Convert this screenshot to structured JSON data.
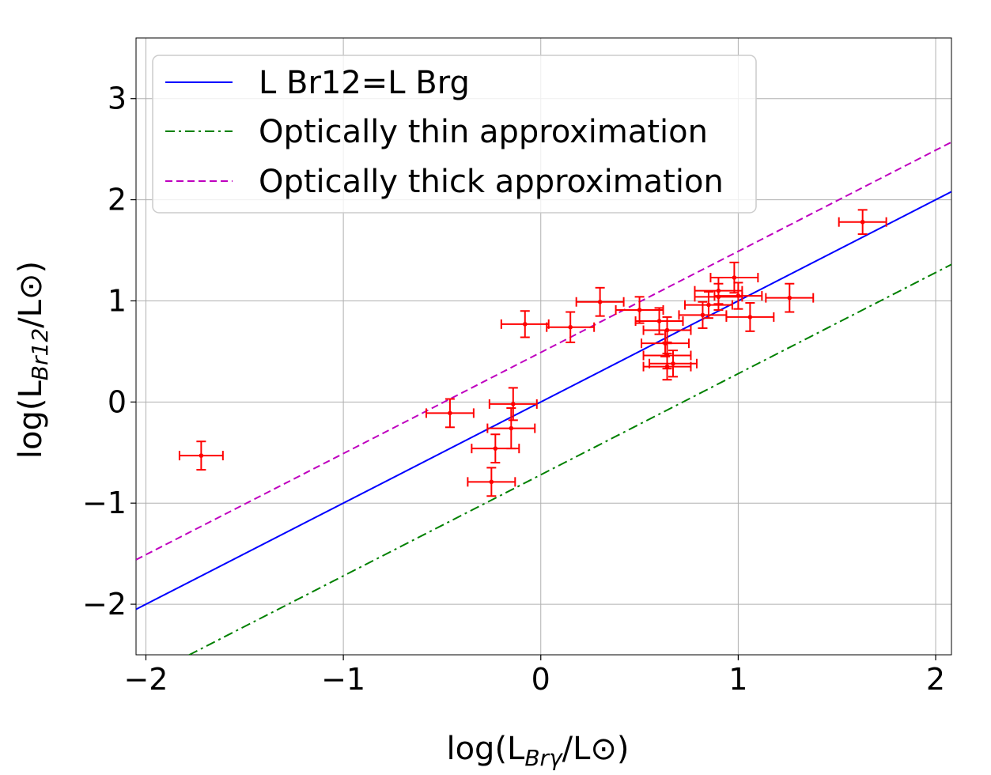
{
  "chart_data": {
    "type": "scatter",
    "title": "",
    "xlabel": "log(L_Brγ/L⊙)",
    "ylabel": "log(L_Br12/L⊙)",
    "xlabel_parts": {
      "pre": "log(L",
      "sub": "Brγ",
      "post": "/L⊙)"
    },
    "ylabel_parts": {
      "pre": "log(L",
      "sub": "Br12",
      "post": "/L⊙)"
    },
    "xlim": [
      -2.05,
      2.08
    ],
    "ylim": [
      -2.5,
      3.6
    ],
    "xticks": [
      -2,
      -1,
      0,
      1,
      2
    ],
    "yticks": [
      -2,
      -1,
      0,
      1,
      2,
      3
    ],
    "xtick_labels": [
      "−2",
      "−1",
      "0",
      "1",
      "2"
    ],
    "ytick_labels": [
      "−2",
      "−1",
      "0",
      "1",
      "2",
      "3"
    ],
    "grid": true,
    "legend_position": "top-left",
    "colors": {
      "equal": "#0000ff",
      "thin": "#008000",
      "thick": "#bf00bf",
      "data": "#ff0000",
      "grid": "#b0b0b0"
    },
    "lines": [
      {
        "name": "L Br12=L Brg",
        "slope": 1.0,
        "intercept": 0.0,
        "style": "solid",
        "color": "#0000ff"
      },
      {
        "name": "Optically thin approximation",
        "slope": 1.0,
        "intercept": -0.72,
        "style": "dashdot",
        "color": "#008000"
      },
      {
        "name": "Optically thick approximation",
        "slope": 1.0,
        "intercept": 0.49,
        "style": "dashed",
        "color": "#bf00bf"
      }
    ],
    "series": [
      {
        "name": "data",
        "points": [
          {
            "x": -1.72,
            "y": -0.53,
            "xerr": 0.11,
            "yerr": 0.14
          },
          {
            "x": -0.46,
            "y": -0.11,
            "xerr": 0.12,
            "yerr": 0.14
          },
          {
            "x": -0.14,
            "y": -0.02,
            "xerr": 0.12,
            "yerr": 0.16
          },
          {
            "x": -0.15,
            "y": -0.26,
            "xerr": 0.12,
            "yerr": 0.2
          },
          {
            "x": -0.23,
            "y": -0.46,
            "xerr": 0.12,
            "yerr": 0.14
          },
          {
            "x": -0.25,
            "y": -0.79,
            "xerr": 0.12,
            "yerr": 0.14
          },
          {
            "x": -0.08,
            "y": 0.77,
            "xerr": 0.12,
            "yerr": 0.13
          },
          {
            "x": 0.15,
            "y": 0.74,
            "xerr": 0.12,
            "yerr": 0.15
          },
          {
            "x": 0.3,
            "y": 0.99,
            "xerr": 0.12,
            "yerr": 0.14
          },
          {
            "x": 0.5,
            "y": 0.91,
            "xerr": 0.12,
            "yerr": 0.13
          },
          {
            "x": 0.6,
            "y": 0.8,
            "xerr": 0.12,
            "yerr": 0.13
          },
          {
            "x": 0.64,
            "y": 0.71,
            "xerr": 0.12,
            "yerr": 0.13
          },
          {
            "x": 0.63,
            "y": 0.58,
            "xerr": 0.12,
            "yerr": 0.13
          },
          {
            "x": 0.64,
            "y": 0.46,
            "xerr": 0.12,
            "yerr": 0.13
          },
          {
            "x": 0.67,
            "y": 0.38,
            "xerr": 0.12,
            "yerr": 0.13
          },
          {
            "x": 0.64,
            "y": 0.35,
            "xerr": 0.12,
            "yerr": 0.13
          },
          {
            "x": 0.82,
            "y": 0.86,
            "xerr": 0.12,
            "yerr": 0.13
          },
          {
            "x": 0.85,
            "y": 0.96,
            "xerr": 0.12,
            "yerr": 0.13
          },
          {
            "x": 0.9,
            "y": 1.04,
            "xerr": 0.12,
            "yerr": 0.13
          },
          {
            "x": 0.9,
            "y": 1.1,
            "xerr": 0.12,
            "yerr": 0.13
          },
          {
            "x": 0.98,
            "y": 1.23,
            "xerr": 0.12,
            "yerr": 0.15
          },
          {
            "x": 1.0,
            "y": 1.05,
            "xerr": 0.12,
            "yerr": 0.13
          },
          {
            "x": 1.06,
            "y": 0.84,
            "xerr": 0.12,
            "yerr": 0.14
          },
          {
            "x": 1.26,
            "y": 1.03,
            "xerr": 0.12,
            "yerr": 0.14
          },
          {
            "x": 1.63,
            "y": 1.78,
            "xerr": 0.12,
            "yerr": 0.12
          }
        ]
      }
    ]
  }
}
